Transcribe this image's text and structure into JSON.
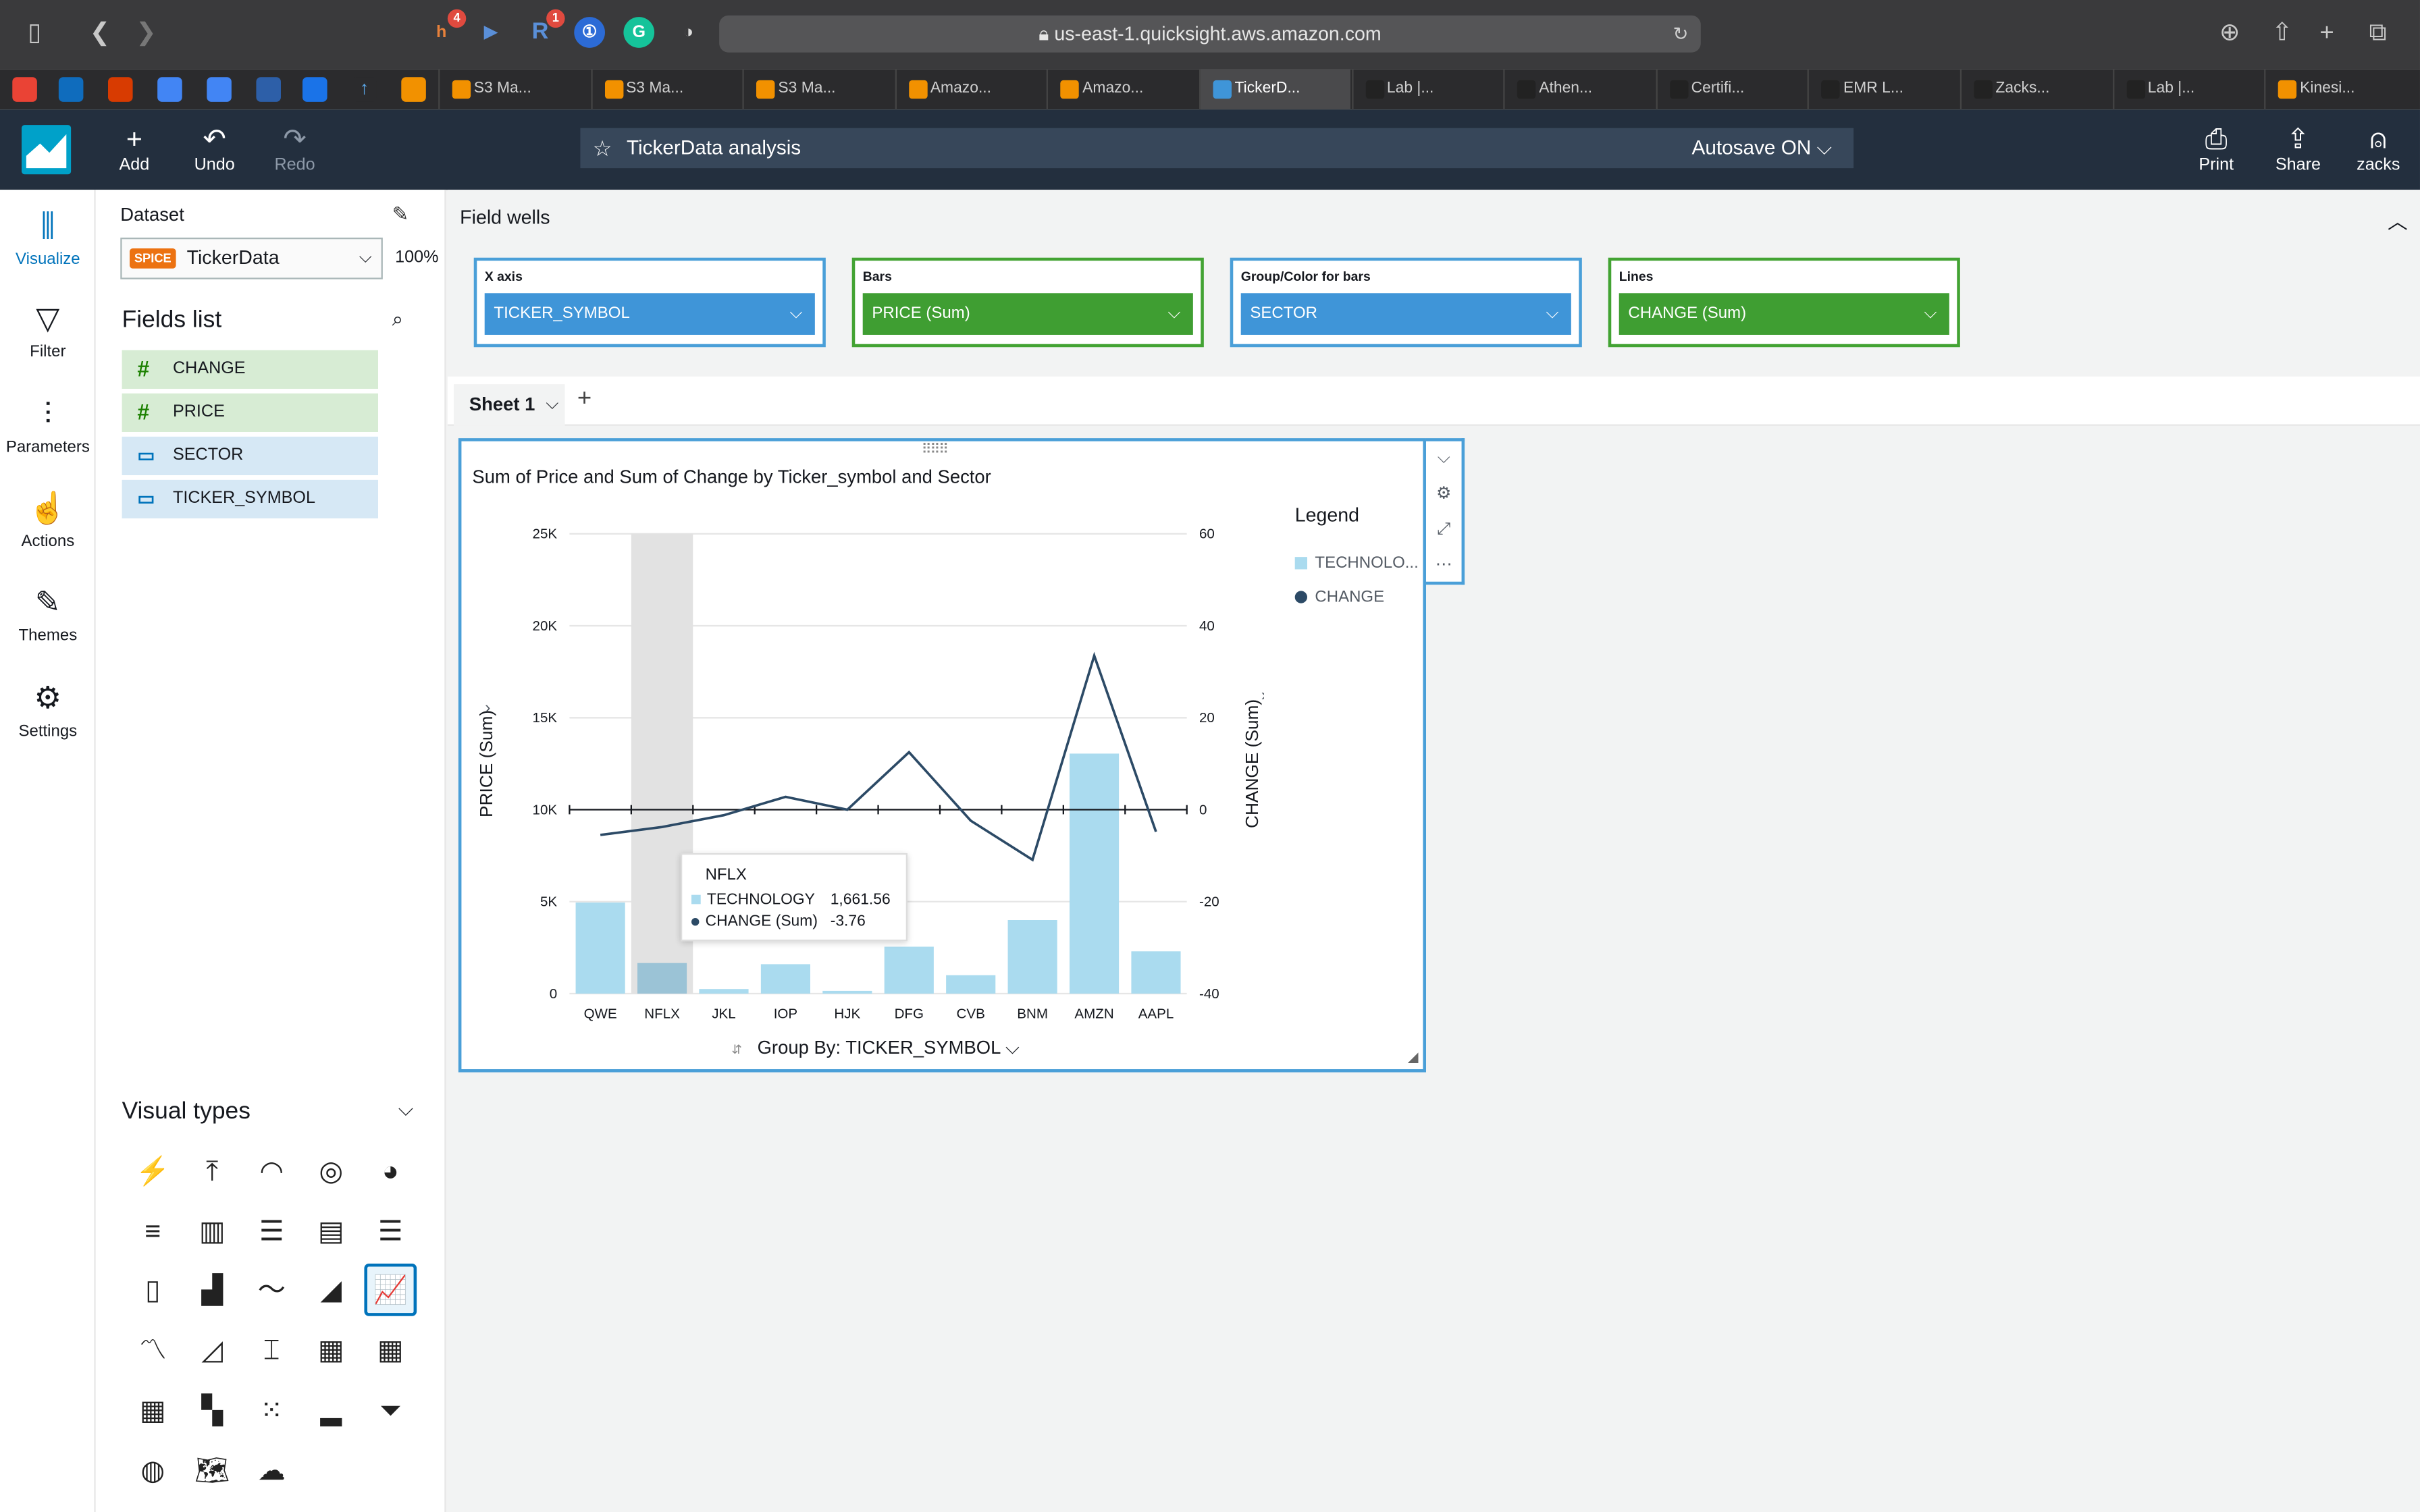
{
  "browser": {
    "url": "us-east-1.quicksight.aws.amazon.com",
    "extensions": [
      {
        "name": "honey",
        "badge": "4"
      },
      {
        "name": "forward"
      },
      {
        "name": "r",
        "badge": "1"
      },
      {
        "name": "onepassword"
      },
      {
        "name": "grammarly"
      },
      {
        "name": "shield"
      }
    ],
    "tabs": [
      "S3 Ma...",
      "S3 Ma...",
      "S3 Ma...",
      "Amazo...",
      "Amazo...",
      "TickerD...",
      "Lab |...",
      "Athen...",
      "Certifi...",
      "EMR L...",
      "Zacks...",
      "Lab |...",
      "Kinesi..."
    ],
    "active_tab": 5
  },
  "toolbar": {
    "add": "Add",
    "undo": "Undo",
    "redo": "Redo",
    "analysis_title": "TickerData analysis",
    "autosave": "Autosave ON",
    "print": "Print",
    "share": "Share",
    "user": "zacks"
  },
  "nav": [
    "Visualize",
    "Filter",
    "Parameters",
    "Actions",
    "Themes",
    "Settings"
  ],
  "dataset": {
    "label": "Dataset",
    "badge": "SPICE",
    "name": "TickerData",
    "percent": "100%"
  },
  "fields": {
    "title": "Fields list",
    "items": [
      {
        "name": "CHANGE",
        "type": "num"
      },
      {
        "name": "PRICE",
        "type": "num"
      },
      {
        "name": "SECTOR",
        "type": "dim"
      },
      {
        "name": "TICKER_SYMBOL",
        "type": "dim"
      }
    ]
  },
  "visual_types": {
    "title": "Visual types"
  },
  "field_wells": {
    "title": "Field wells",
    "wells": [
      {
        "label": "X axis",
        "value": "TICKER_SYMBOL"
      },
      {
        "label": "Bars",
        "value": "PRICE (Sum)"
      },
      {
        "label": "Group/Color for bars",
        "value": "SECTOR"
      },
      {
        "label": "Lines",
        "value": "CHANGE (Sum)"
      }
    ]
  },
  "sheet": {
    "name": "Sheet 1"
  },
  "visual": {
    "title": "Sum of Price and Sum of Change by Ticker_symbol and Sector",
    "legend_title": "Legend",
    "legend": [
      "TECHNOLO...",
      "CHANGE"
    ],
    "group_by": "Group By: TICKER_SYMBOL",
    "tooltip": {
      "title": "NFLX",
      "row1_label": "TECHNOLOGY",
      "row1_value": "1,661.56",
      "row2_label": "CHANGE (Sum)",
      "row2_value": "-3.76"
    }
  },
  "chart_data": {
    "type": "bar",
    "title": "Sum of Price and Sum of Change by Ticker_symbol and Sector",
    "categories": [
      "QWE",
      "NFLX",
      "JKL",
      "IOP",
      "HJK",
      "DFG",
      "CVB",
      "BNM",
      "AMZN",
      "AAPL"
    ],
    "series": [
      {
        "name": "TECHNOLOGY",
        "type": "bar",
        "axis": "left",
        "values": [
          4950,
          1661.56,
          250,
          1600,
          150,
          2550,
          1000,
          4000,
          13050,
          2300
        ]
      },
      {
        "name": "CHANGE",
        "type": "line",
        "axis": "right",
        "values": [
          -5.5,
          -3.76,
          -1.2,
          2.8,
          0,
          12.5,
          -2.4,
          -10.9,
          33.5,
          -4.8
        ]
      }
    ],
    "ylabel": "PRICE (Sum)",
    "ylim": [
      0,
      25000
    ],
    "yticks": [
      "0",
      "5K",
      "10K",
      "15K",
      "20K",
      "25K"
    ],
    "y2label": "CHANGE (Sum)",
    "y2lim": [
      -40,
      60
    ],
    "y2ticks": [
      "-40",
      "-20",
      "0",
      "20",
      "40",
      "60"
    ],
    "highlight": "NFLX",
    "colors": {
      "bar": "#aadbef",
      "bar_highlight": "#9bc3d6",
      "line": "#2c4a66"
    }
  }
}
